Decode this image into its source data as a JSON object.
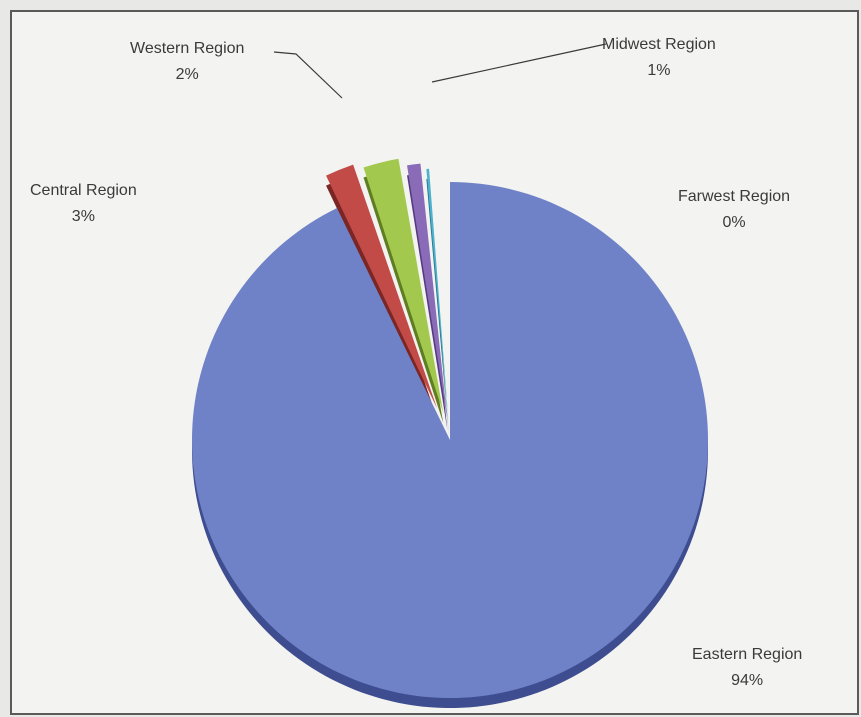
{
  "chart_data": {
    "type": "pie",
    "slices": [
      {
        "label": "Eastern Region",
        "value": 94,
        "pct_label": "94%",
        "color": "#6f82c8",
        "shade": "#3e4d8f"
      },
      {
        "label": "Western Region",
        "value": 2,
        "pct_label": "2%",
        "color": "#c24a47",
        "shade": "#7a2624"
      },
      {
        "label": "Central Region",
        "value": 3,
        "pct_label": "3%",
        "color": "#a2c94d",
        "shade": "#5f7d22"
      },
      {
        "label": "Midwest Region",
        "value": 1,
        "pct_label": "1%",
        "color": "#8a6bb8",
        "shade": "#553a80"
      },
      {
        "label": "Farwest Region",
        "value": 0,
        "pct_label": "0%",
        "color": "#4bb3cf",
        "shade": "#2a7489"
      }
    ]
  }
}
